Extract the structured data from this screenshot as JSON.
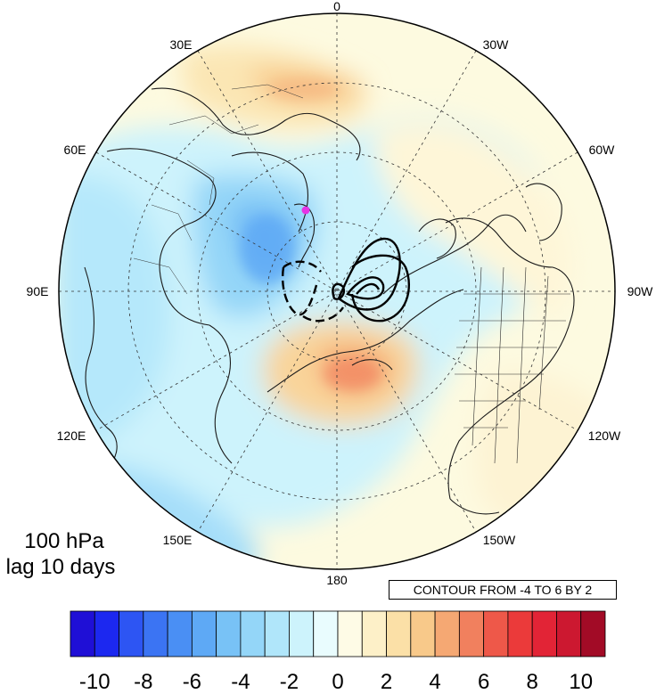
{
  "map": {
    "projection": "north polar stereographic",
    "lon_labels": {
      "lon0": "0",
      "lon30w": "30W",
      "lon60w": "60W",
      "lon90w": "90W",
      "lon120w": "120W",
      "lon150w": "150W",
      "lon180": "180",
      "lon150e": "150E",
      "lon120e": "120E",
      "lon90e": "90E",
      "lon60e": "60E",
      "lon30e": "30E"
    },
    "pressure_level": "100 hPa",
    "lag": "lag 10 days",
    "contour_info": "CONTOUR FROM -4 TO 6 BY 2",
    "marker_color": "#e633e6"
  },
  "colorbar": {
    "ticks": [
      "-10",
      "-8",
      "-6",
      "-4",
      "-2",
      "0",
      "2",
      "4",
      "6",
      "8",
      "10"
    ],
    "colors": [
      "#1f0fd6",
      "#1c28f0",
      "#2d55f3",
      "#3b74f3",
      "#4a8ff4",
      "#5ea9f5",
      "#78c2f6",
      "#94d6f8",
      "#b0e6fa",
      "#cdf3fc",
      "#e9fcfe",
      "#fefbe6",
      "#fdf0c8",
      "#fbe0a7",
      "#f8c98a",
      "#f5a873",
      "#f1805e",
      "#ee5849",
      "#eb3a3a",
      "#e22436",
      "#cc1830",
      "#a20b26"
    ]
  }
}
